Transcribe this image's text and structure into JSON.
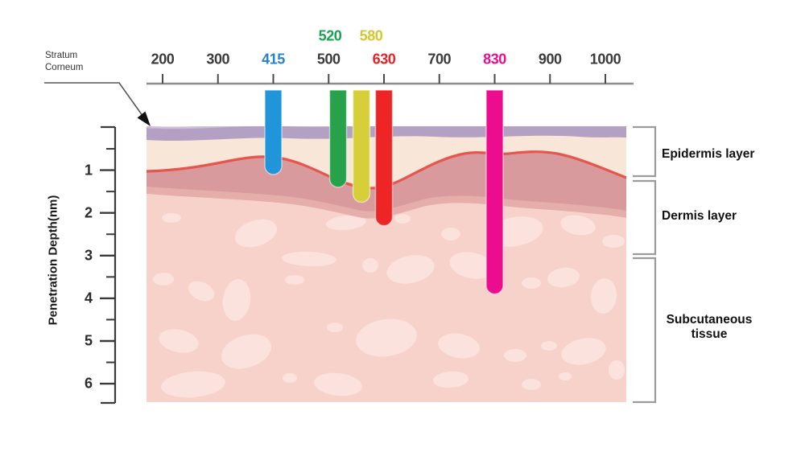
{
  "top_axis": {
    "tick_labels": [
      {
        "text": "200",
        "color": "#3b3b3b"
      },
      {
        "text": "300",
        "color": "#3b3b3b"
      },
      {
        "text": "415",
        "color": "#2484d2"
      },
      {
        "text": "500",
        "color": "#3b3b3b"
      },
      {
        "text": "630",
        "color": "#ee2024"
      },
      {
        "text": "700",
        "color": "#3b3b3b"
      },
      {
        "text": "830",
        "color": "#ec0e90"
      },
      {
        "text": "900",
        "color": "#3b3b3b"
      },
      {
        "text": "1000",
        "color": "#3b3b3b"
      }
    ],
    "upper_labels": [
      {
        "text": "520",
        "color": "#19a24f"
      },
      {
        "text": "580",
        "color": "#d6c62e"
      }
    ]
  },
  "left_axis": {
    "title": "Penetration Depth(nm)",
    "tick_labels": [
      "1",
      "2",
      "3",
      "4",
      "5",
      "6"
    ]
  },
  "annotations": {
    "stratum_corneum": "Stratum\nCorneum"
  },
  "skin_layers": [
    {
      "label": "Epidermis layer"
    },
    {
      "label": "Dermis layer"
    },
    {
      "label": "Subcutaneous\ntissue"
    }
  ],
  "palette": {
    "stratum_corneum_band": "#b3a0c3",
    "stratum_corneum_highlight": "#ccbdd8",
    "epidermis": "#f8e6d8",
    "dermis": "#d89a9c",
    "dermis_under": "#e5aeab",
    "dermis_line": "#e4564e",
    "subcutaneous": "#f7d2cb",
    "subcutaneous_blob": "#fbe2dd",
    "axis_gray": "#8c8c8c",
    "bracket_gray": "#9b9b9b"
  },
  "chart_data": {
    "type": "bar",
    "x_tick_labels": [
      200,
      300,
      415,
      500,
      630,
      700,
      830,
      900,
      1000
    ],
    "upper_x_labels": [
      520,
      580
    ],
    "ylabel": "Penetration Depth(nm)",
    "y_ticks": [
      1,
      2,
      3,
      4,
      5,
      6
    ],
    "y_axis_direction": "depth-downward",
    "series": [
      {
        "wavelength_nm": 415,
        "penetration_depth": 1.1,
        "color": "#2095da"
      },
      {
        "wavelength_nm": 520,
        "penetration_depth": 1.4,
        "color": "#28a14b"
      },
      {
        "wavelength_nm": 580,
        "penetration_depth": 1.75,
        "color": "#d6cf3a"
      },
      {
        "wavelength_nm": 630,
        "penetration_depth": 2.3,
        "color": "#ee2525"
      },
      {
        "wavelength_nm": 830,
        "penetration_depth": 3.9,
        "color": "#eb0d8e"
      }
    ],
    "annotations": [
      "Stratum Corneum",
      "Epidermis layer",
      "Dermis layer",
      "Subcutaneous tissue"
    ]
  }
}
